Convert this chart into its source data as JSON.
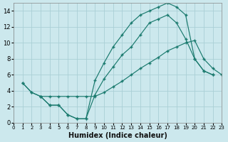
{
  "xlabel": "Humidex (Indice chaleur)",
  "bg_color": "#cce8ed",
  "grid_color": "#aacfd6",
  "line_color": "#1a7a6e",
  "line1_x": [
    1,
    2,
    3,
    4,
    5,
    6,
    7,
    8,
    9,
    10,
    11,
    12,
    13,
    14,
    15,
    16,
    17,
    18,
    19,
    20,
    21,
    22
  ],
  "line1_y": [
    5.0,
    3.8,
    3.3,
    2.2,
    2.2,
    1.0,
    0.5,
    0.5,
    5.3,
    7.5,
    9.5,
    11.0,
    12.5,
    13.5,
    14.0,
    14.5,
    15.0,
    14.5,
    13.5,
    8.0,
    6.5,
    6.0
  ],
  "line2_x": [
    3,
    4,
    5,
    6,
    7,
    8,
    9,
    10,
    11,
    12,
    13,
    14,
    15,
    16,
    17,
    18,
    19,
    20,
    21,
    22
  ],
  "line2_y": [
    3.3,
    2.2,
    2.2,
    1.0,
    0.5,
    0.5,
    3.5,
    5.5,
    7.0,
    8.5,
    9.5,
    11.0,
    12.5,
    13.0,
    13.5,
    12.5,
    10.5,
    8.0,
    6.5,
    6.0
  ],
  "line3_x": [
    1,
    2,
    3,
    4,
    5,
    6,
    7,
    8,
    9,
    10,
    11,
    12,
    13,
    14,
    15,
    16,
    17,
    18,
    19,
    20,
    21,
    22,
    23
  ],
  "line3_y": [
    5.0,
    3.8,
    3.3,
    3.3,
    3.3,
    3.3,
    3.3,
    3.3,
    3.3,
    3.8,
    4.5,
    5.2,
    6.0,
    6.8,
    7.5,
    8.2,
    9.0,
    9.5,
    10.0,
    10.3,
    8.0,
    6.8,
    6.0
  ],
  "xlim": [
    0,
    23
  ],
  "ylim": [
    0,
    15
  ],
  "xticks": [
    0,
    1,
    2,
    3,
    4,
    5,
    6,
    7,
    8,
    9,
    10,
    11,
    12,
    13,
    14,
    15,
    16,
    17,
    18,
    19,
    20,
    21,
    22,
    23
  ],
  "yticks": [
    0,
    2,
    4,
    6,
    8,
    10,
    12,
    14
  ]
}
